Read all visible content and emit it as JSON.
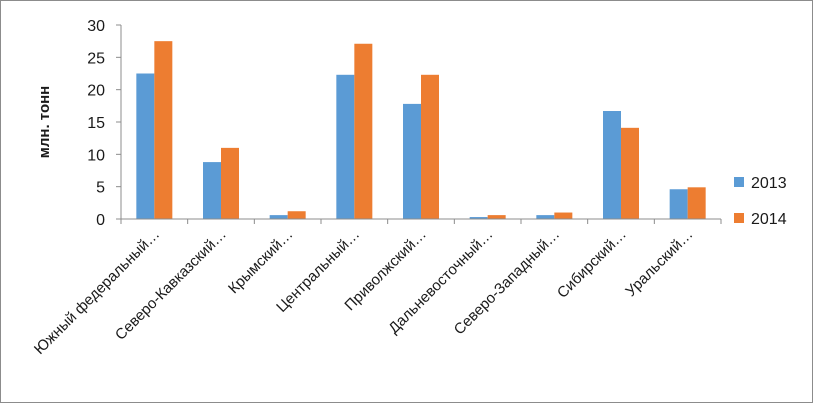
{
  "chart_data": {
    "type": "bar",
    "title": "",
    "xlabel": "",
    "ylabel": "млн. тонн",
    "ylim": [
      0,
      30
    ],
    "yticks": [
      0,
      5,
      10,
      15,
      20,
      25,
      30
    ],
    "grid": false,
    "legend_position": "right",
    "categories": [
      "Южный федеральный…",
      "Северо-Кавказский…",
      "Крымский…",
      "Центральный…",
      "Приволжский…",
      "Дальневосточный…",
      "Северо-Западный…",
      "Сибирский…",
      "Уральский…"
    ],
    "series": [
      {
        "name": "2013",
        "color": "#5b9bd5",
        "values": [
          22.5,
          8.8,
          0.6,
          22.3,
          17.8,
          0.3,
          0.6,
          16.7,
          4.6
        ]
      },
      {
        "name": "2014",
        "color": "#ed7d31",
        "values": [
          27.5,
          11.0,
          1.2,
          27.1,
          22.3,
          0.6,
          1.0,
          14.1,
          4.9
        ]
      }
    ]
  }
}
